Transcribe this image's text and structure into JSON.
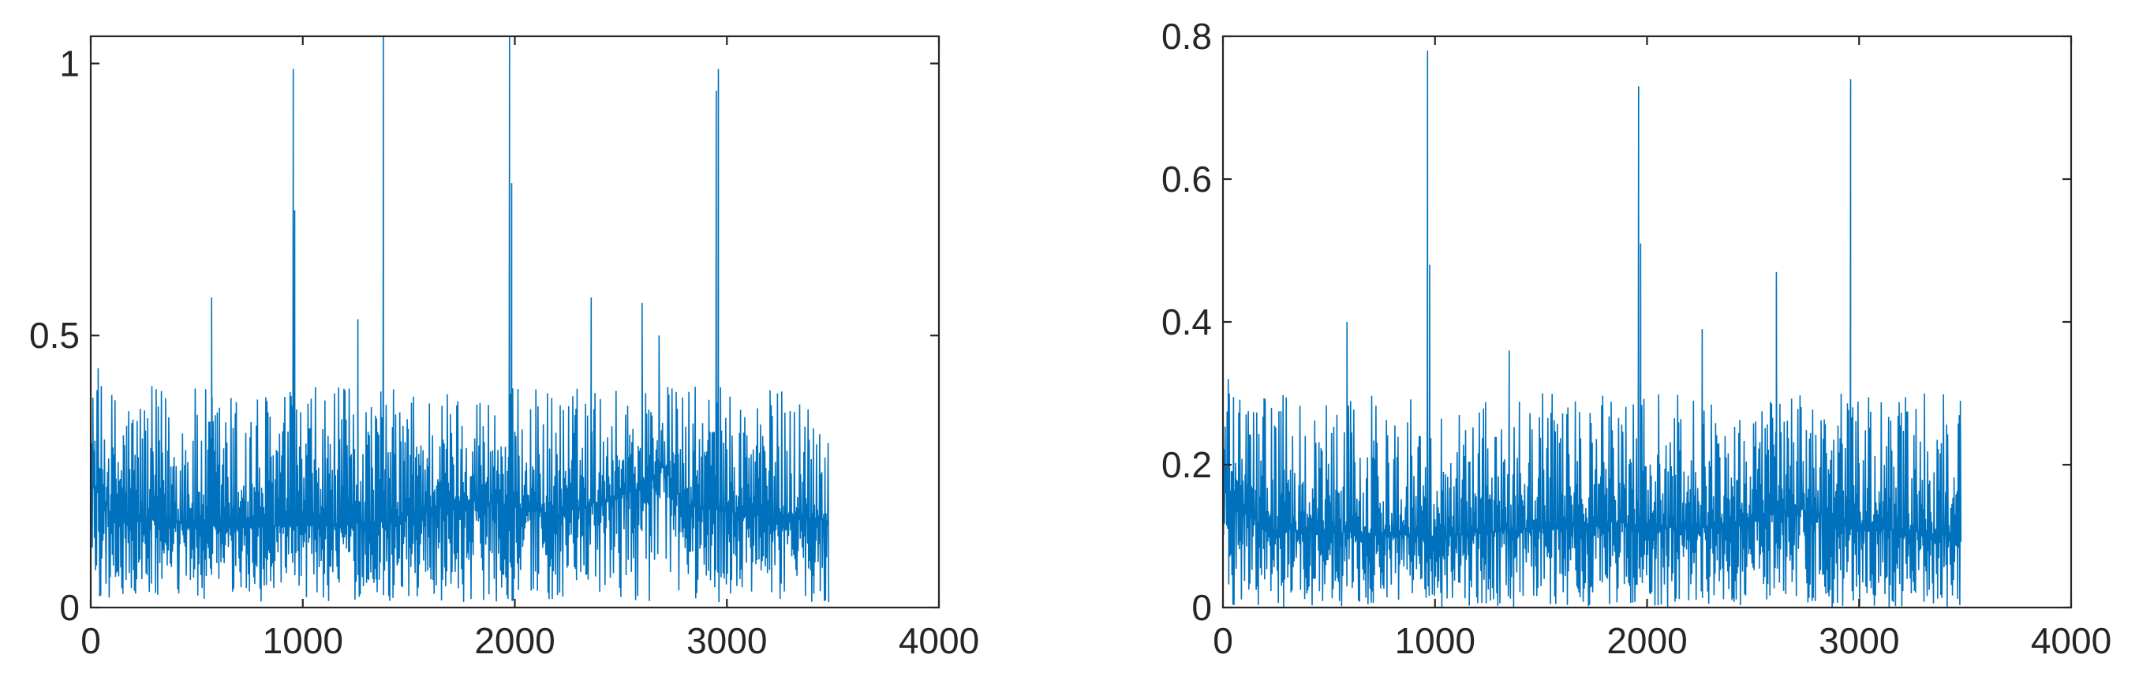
{
  "chart_data": [
    {
      "type": "line",
      "xlim": [
        0,
        4000
      ],
      "ylim": [
        0,
        1.05
      ],
      "xticks": [
        0,
        1000,
        2000,
        3000,
        4000
      ],
      "xtick_labels": [
        "0",
        "1000",
        "2000",
        "3000",
        "4000"
      ],
      "yticks": [
        0,
        0.5,
        1
      ],
      "ytick_labels": [
        "0",
        "0.5",
        "1"
      ],
      "grid": false,
      "color": "#0072BD",
      "series": [
        {
          "x_range": [
            0,
            3480
          ],
          "baseline": [
            [
              0,
              0.24
            ],
            [
              100,
              0.17
            ],
            [
              500,
              0.15
            ],
            [
              1000,
              0.15
            ],
            [
              1400,
              0.16
            ],
            [
              1800,
              0.2
            ],
            [
              2200,
              0.17
            ],
            [
              2600,
              0.22
            ],
            [
              2700,
              0.26
            ],
            [
              2800,
              0.19
            ],
            [
              3100,
              0.17
            ],
            [
              3480,
              0.16
            ]
          ],
          "noise_range": [
            0.01,
            0.42
          ],
          "peaks": [
            [
              35,
              0.44
            ],
            [
              570,
              0.57
            ],
            [
              955,
              0.99
            ],
            [
              962,
              0.73
            ],
            [
              1260,
              0.53
            ],
            [
              1380,
              1.05
            ],
            [
              1975,
              1.05
            ],
            [
              1985,
              0.78
            ],
            [
              2360,
              0.57
            ],
            [
              2600,
              0.56
            ],
            [
              2680,
              0.5
            ],
            [
              2950,
              0.95
            ],
            [
              2960,
              0.99
            ]
          ]
        }
      ]
    },
    {
      "type": "line",
      "xlim": [
        0,
        4000
      ],
      "ylim": [
        0,
        0.8
      ],
      "xticks": [
        0,
        1000,
        2000,
        3000,
        4000
      ],
      "xtick_labels": [
        "0",
        "1000",
        "2000",
        "3000",
        "4000"
      ],
      "yticks": [
        0,
        0.2,
        0.4,
        0.6,
        0.8
      ],
      "ytick_labels": [
        "0",
        "0.2",
        "0.4",
        "0.6",
        "0.8"
      ],
      "grid": false,
      "color": "#0072BD",
      "series": [
        {
          "x_range": [
            0,
            3480
          ],
          "baseline": [
            [
              0,
              0.17
            ],
            [
              200,
              0.11
            ],
            [
              1000,
              0.1
            ],
            [
              1400,
              0.11
            ],
            [
              1800,
              0.12
            ],
            [
              2200,
              0.11
            ],
            [
              2600,
              0.13
            ],
            [
              2700,
              0.14
            ],
            [
              3100,
              0.11
            ],
            [
              3480,
              0.1
            ]
          ],
          "noise_range": [
            0.0,
            0.31
          ],
          "peaks": [
            [
              25,
              0.32
            ],
            [
              585,
              0.4
            ],
            [
              965,
              0.78
            ],
            [
              975,
              0.48
            ],
            [
              1350,
              0.36
            ],
            [
              1960,
              0.73
            ],
            [
              1970,
              0.51
            ],
            [
              2260,
              0.39
            ],
            [
              2610,
              0.47
            ],
            [
              2960,
              0.74
            ]
          ]
        }
      ]
    }
  ]
}
